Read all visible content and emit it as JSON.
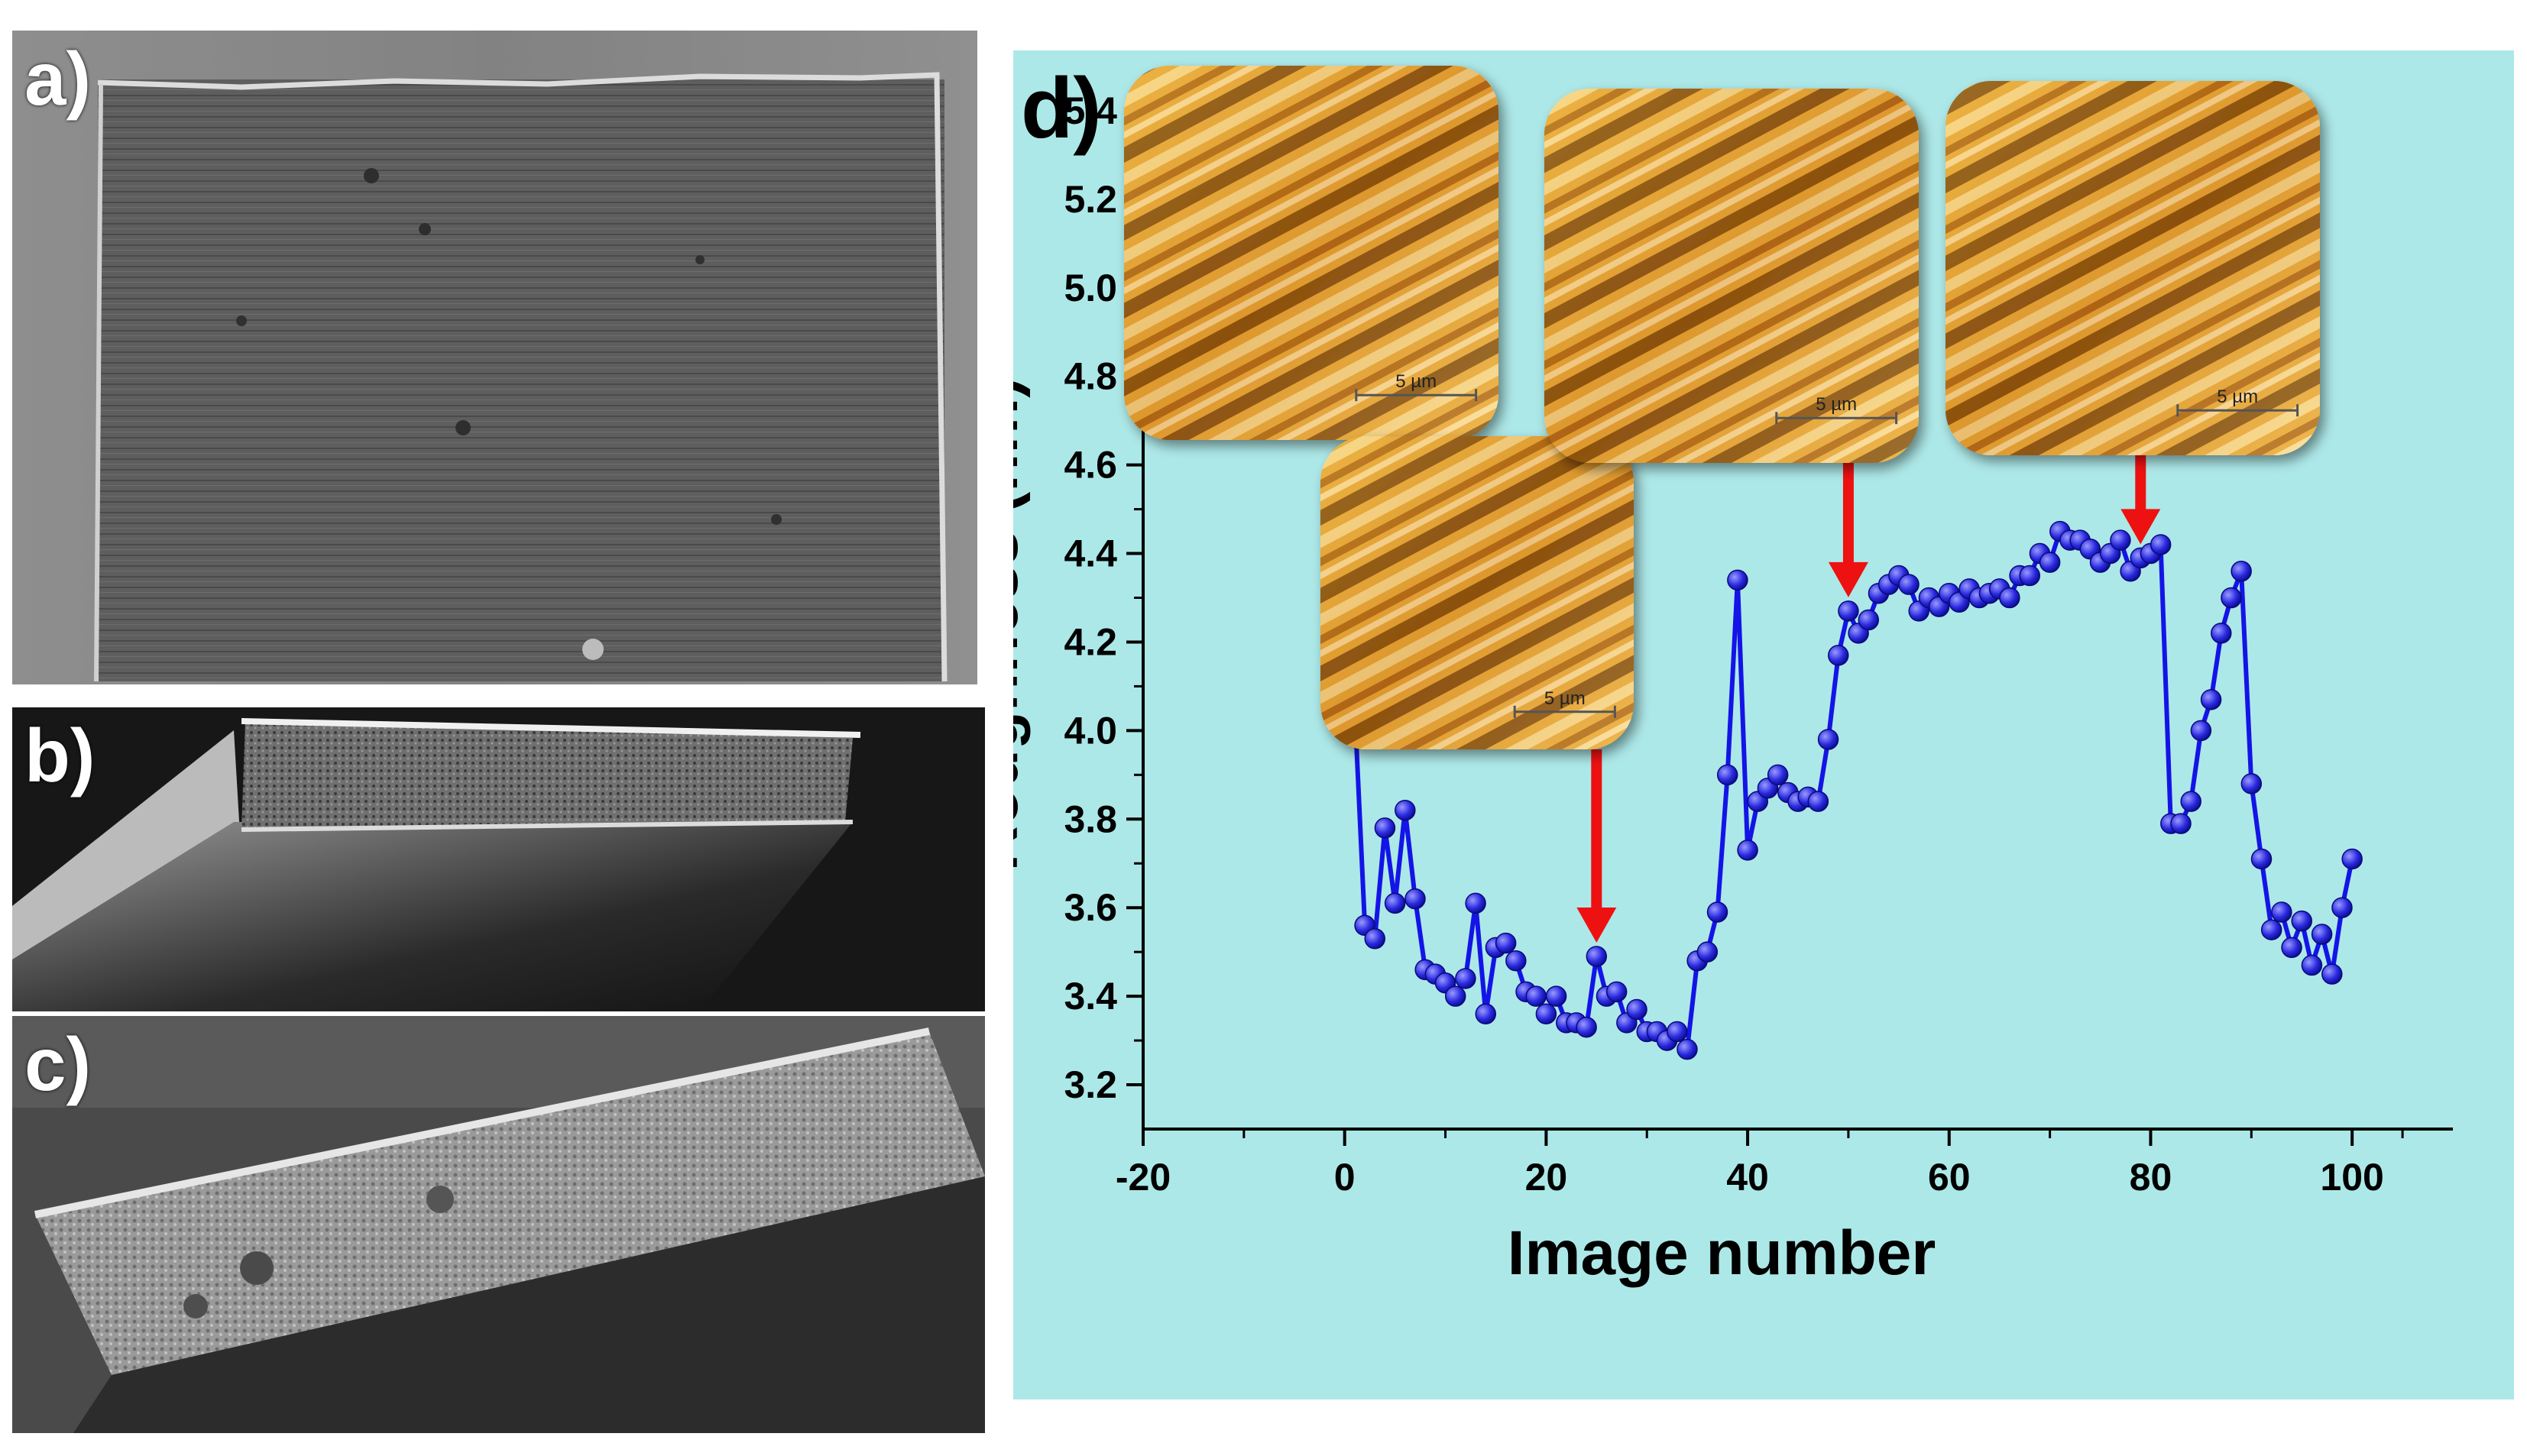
{
  "panels": {
    "a": {
      "label": "a)"
    },
    "b": {
      "label": "b)"
    },
    "c": {
      "label": "c)"
    },
    "d": {
      "label": "d)"
    }
  },
  "insets": [
    {
      "scale_label": "5 µm",
      "points_to_x": 1
    },
    {
      "scale_label": "5 µm",
      "points_to_x": 25
    },
    {
      "scale_label": "5 µm",
      "points_to_x": 50
    },
    {
      "scale_label": "5 µm",
      "points_to_x": 79
    }
  ],
  "colors": {
    "series": "#1414e6",
    "marker": "#2a2ae0",
    "arrow": "#ee1111",
    "plot_bg": "#ade8e8"
  },
  "chart_data": {
    "type": "line",
    "xlabel": "Image number",
    "ylabel": "Roughness (nm)",
    "xlim": [
      -20,
      110
    ],
    "ylim": [
      3.1,
      5.45
    ],
    "xticks": [
      -20,
      0,
      20,
      40,
      60,
      80,
      100
    ],
    "yticks": [
      3.2,
      3.4,
      3.6,
      3.8,
      4.0,
      4.2,
      4.4,
      4.6,
      4.8,
      5.0,
      5.2,
      5.4
    ],
    "grid": false,
    "series": [
      {
        "x": [
          1,
          2,
          3,
          4,
          5,
          6,
          7,
          8,
          9,
          10,
          11,
          12,
          13,
          14,
          15,
          16,
          17,
          18,
          19,
          20,
          21,
          22,
          23,
          24,
          25,
          26,
          27,
          28,
          29,
          30,
          31,
          32,
          33,
          34,
          35,
          36,
          37,
          38,
          39,
          40,
          41,
          42,
          43,
          44,
          45,
          46,
          47,
          48,
          49,
          50,
          51,
          52,
          53,
          54,
          55,
          56,
          57,
          58,
          59,
          60,
          61,
          62,
          63,
          64,
          65,
          66,
          67,
          68,
          69,
          70,
          71,
          72,
          73,
          74,
          75,
          76,
          77,
          78,
          79,
          80,
          81,
          82,
          83,
          84,
          85,
          86,
          87,
          88,
          89,
          90,
          91,
          92,
          93,
          94,
          95,
          96,
          97,
          98,
          99,
          100
        ],
        "y": [
          4.05,
          3.56,
          3.53,
          3.78,
          3.61,
          3.82,
          3.62,
          3.46,
          3.45,
          3.43,
          3.4,
          3.44,
          3.61,
          3.36,
          3.51,
          3.52,
          3.48,
          3.41,
          3.4,
          3.36,
          3.4,
          3.34,
          3.34,
          3.33,
          3.49,
          3.4,
          3.41,
          3.34,
          3.37,
          3.32,
          3.32,
          3.3,
          3.32,
          3.28,
          3.48,
          3.5,
          3.59,
          3.9,
          4.34,
          3.73,
          3.84,
          3.87,
          3.9,
          3.86,
          3.84,
          3.85,
          3.84,
          3.98,
          4.17,
          4.27,
          4.22,
          4.25,
          4.31,
          4.33,
          4.35,
          4.33,
          4.27,
          4.3,
          4.28,
          4.31,
          4.29,
          4.32,
          4.3,
          4.31,
          4.32,
          4.3,
          4.35,
          4.35,
          4.4,
          4.38,
          4.45,
          4.43,
          4.43,
          4.41,
          4.38,
          4.4,
          4.43,
          4.36,
          4.39,
          4.4,
          4.42,
          3.79,
          3.79,
          3.84,
          4.0,
          4.07,
          4.22,
          4.3,
          4.36,
          3.88,
          3.71,
          3.55,
          3.59,
          3.51,
          3.57,
          3.47,
          3.54,
          3.45,
          3.6,
          3.71
        ]
      }
    ]
  }
}
